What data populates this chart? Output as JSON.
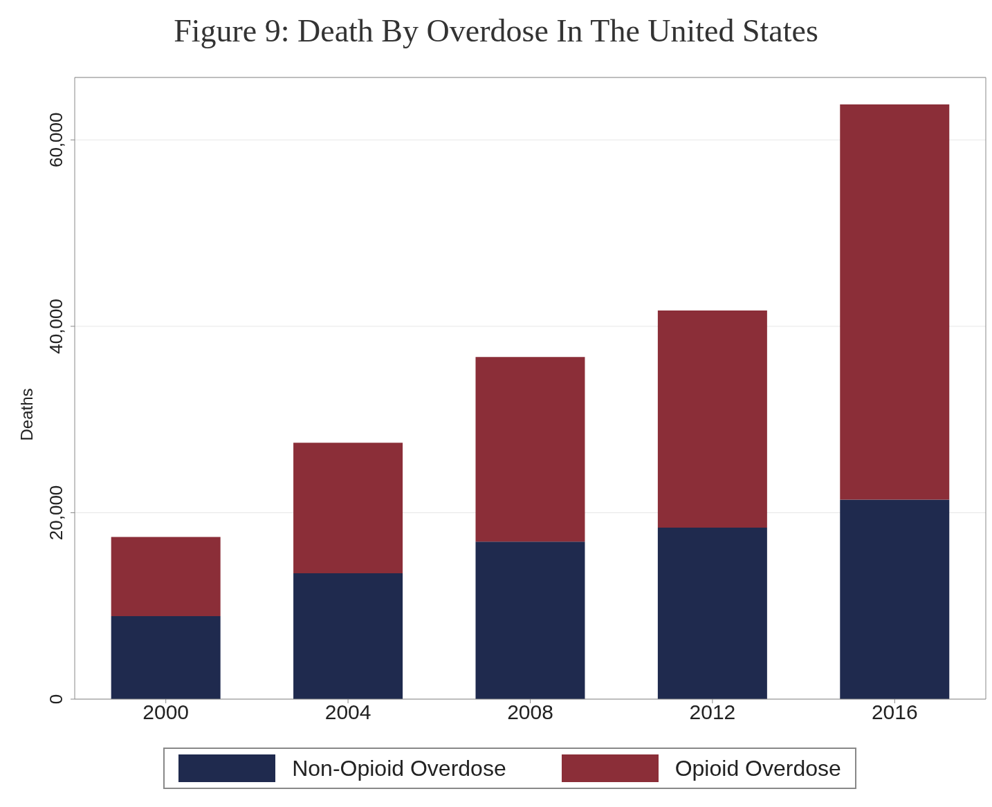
{
  "chart_data": {
    "type": "bar",
    "title": "Figure 9: Death By Overdose In The United States",
    "ylabel": "Deaths",
    "categories": [
      "2000",
      "2004",
      "2008",
      "2012",
      "2016"
    ],
    "series": [
      {
        "name": "Non-Opioid Overdose",
        "color": "#1f2a4e",
        "values": [
          8900,
          13500,
          16900,
          18400,
          21400
        ]
      },
      {
        "name": "Opioid Overdose",
        "color": "#8b2e38",
        "values": [
          8500,
          14000,
          19800,
          23300,
          42400
        ]
      }
    ],
    "stacked": true,
    "ylim": [
      0,
      66700
    ],
    "yticks": [
      {
        "value": 0,
        "label": "0"
      },
      {
        "value": 20000,
        "label": "20,000"
      },
      {
        "value": 40000,
        "label": "40,000"
      },
      {
        "value": 60000,
        "label": "60,000"
      }
    ],
    "grid": "y",
    "legend": "bottom"
  }
}
